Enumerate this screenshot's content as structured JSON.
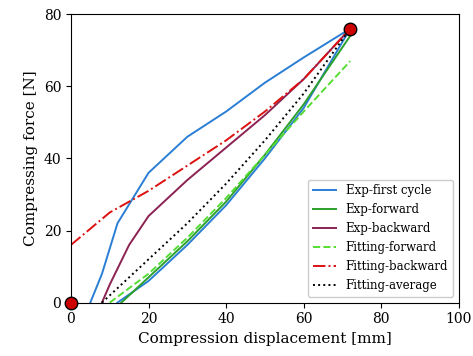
{
  "chart_data": {
    "type": "line",
    "x_label": "Compression displacement [mm]",
    "y_label": "Compressing force [N]",
    "xlim": [
      0,
      100
    ],
    "xticks": [
      0,
      20,
      40,
      60,
      80,
      100
    ],
    "ylim": [
      0,
      80
    ],
    "yticks": [
      0,
      20,
      40,
      60,
      80
    ],
    "legend": "lower right",
    "series": [
      {
        "name": "Exp-first cycle",
        "color": "#2a7fd4",
        "line_style": "solid",
        "x": [
          12,
          20,
          30,
          40,
          50,
          60,
          72,
          60,
          50,
          40,
          30,
          20,
          12,
          8,
          5
        ],
        "values": [
          0,
          6,
          16,
          27,
          40,
          54,
          76,
          68,
          61,
          53,
          46,
          36,
          22,
          8,
          0
        ]
      },
      {
        "name": "Exp-forward",
        "color": "#2ca02c",
        "line_style": "solid",
        "x": [
          13,
          20,
          30,
          40,
          50,
          60,
          72
        ],
        "values": [
          0,
          7,
          17,
          28,
          41,
          55,
          74
        ]
      },
      {
        "name": "Exp-backward",
        "color": "#8b2252",
        "line_style": "solid",
        "x": [
          72,
          60,
          50,
          40,
          30,
          20,
          15,
          10,
          8
        ],
        "values": [
          76,
          62,
          52,
          43,
          34,
          24,
          16,
          5,
          0
        ]
      },
      {
        "name": "Fitting-forward",
        "color": "#55dd33",
        "line_style": "dashed",
        "x": [
          10,
          20,
          30,
          40,
          50,
          60,
          72
        ],
        "values": [
          0,
          8,
          18,
          29,
          41,
          53,
          67
        ]
      },
      {
        "name": "Fitting-backward",
        "color": "#dd1111",
        "line_style": "dashdot",
        "x": [
          0,
          10,
          20,
          30,
          40,
          50,
          60,
          72
        ],
        "values": [
          16,
          25,
          31,
          38,
          45,
          53,
          62,
          76
        ]
      },
      {
        "name": "Fitting-average",
        "color": "#000000",
        "line_style": "dotted",
        "x": [
          8,
          20,
          30,
          40,
          50,
          60,
          72
        ],
        "values": [
          0,
          12,
          22,
          33,
          45,
          58,
          76
        ]
      }
    ],
    "points": {
      "x": [
        0,
        72
      ],
      "values": [
        0,
        76
      ],
      "color": "#cc0000",
      "marker": "o"
    }
  }
}
